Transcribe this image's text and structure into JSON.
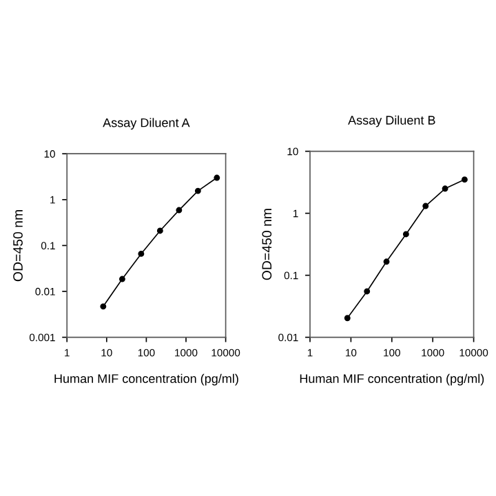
{
  "chart_data": [
    {
      "type": "line",
      "title": "Assay Diluent A",
      "xlabel": "Human MIF concentration (pg/ml)",
      "ylabel": "OD=450 nm",
      "log": "xy",
      "marker": "circle",
      "line_style": "solid",
      "grid": false,
      "legend": false,
      "xlim": [
        1,
        10000
      ],
      "xticks": [
        1,
        10,
        100,
        1000,
        10000
      ],
      "ylim": [
        0.001,
        10
      ],
      "yticks": [
        0.001,
        0.01,
        0.1,
        1,
        10
      ],
      "x": [
        8.2,
        24.7,
        74,
        222,
        667,
        2000,
        6000
      ],
      "series": [
        {
          "color": "#000000",
          "values": [
            0.0047,
            0.0186,
            0.066,
            0.21,
            0.59,
            1.55,
            3.0
          ]
        }
      ]
    },
    {
      "type": "line",
      "title": "Assay Diluent B",
      "xlabel": "Human MIF concentration (pg/ml)",
      "ylabel": "OD=450 nm",
      "log": "xy",
      "marker": "circle",
      "line_style": "solid",
      "grid": false,
      "legend": false,
      "xlim": [
        1,
        10000
      ],
      "xticks": [
        1,
        10,
        100,
        1000,
        10000
      ],
      "ylim": [
        0.01,
        10
      ],
      "yticks": [
        0.01,
        0.1,
        1,
        10
      ],
      "x": [
        8.2,
        24.7,
        74,
        222,
        667,
        2000,
        6000
      ],
      "series": [
        {
          "color": "#000000",
          "values": [
            0.0204,
            0.055,
            0.166,
            0.46,
            1.31,
            2.5,
            3.5
          ]
        }
      ]
    }
  ]
}
